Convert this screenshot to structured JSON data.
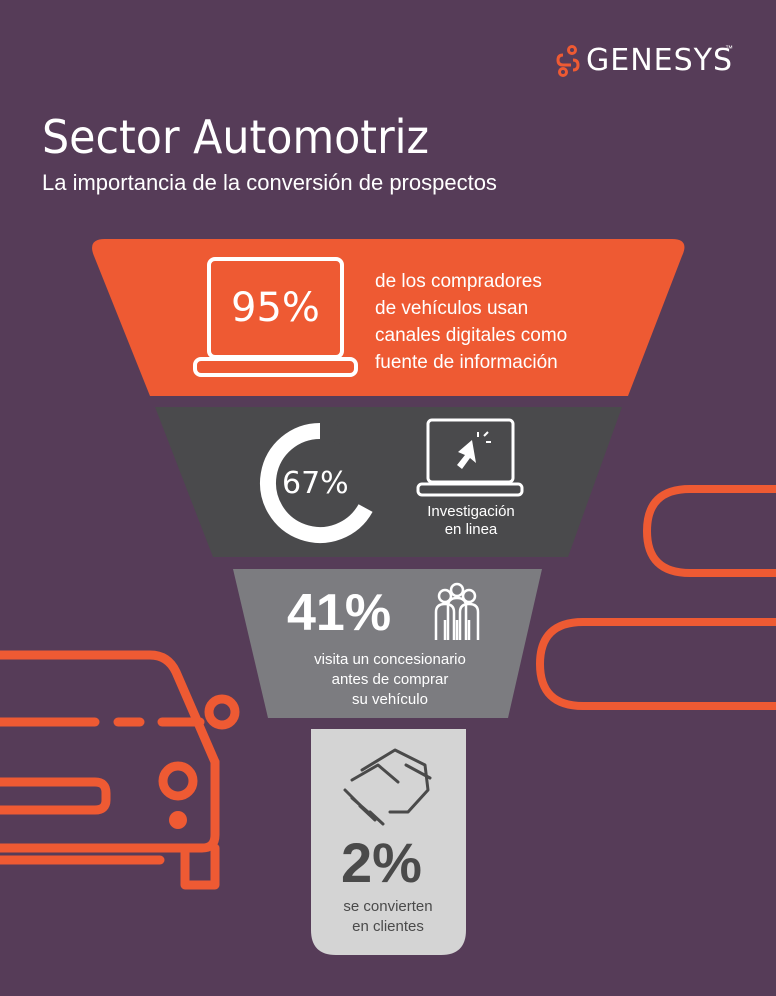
{
  "brand": {
    "name": "GENESYS",
    "trademark": "™",
    "logo_icon": "genesys-logo-icon"
  },
  "header": {
    "title": "Sector Automotriz",
    "subtitle": "La importancia de la conversión de prospectos"
  },
  "colors": {
    "background": "#563c58",
    "orange": "#ee5a33",
    "dark_gray": "#4a4a4c",
    "mid_gray": "#7c7c80",
    "light_gray": "#d4d4d4"
  },
  "funnel": {
    "tier1": {
      "stat": "95%",
      "description_lines": [
        "de los compradores",
        "de vehículos usan",
        "canales digitales como",
        "fuente de información"
      ],
      "icon": "laptop-icon"
    },
    "tier2": {
      "stat": "67%",
      "ring_fraction": 0.67,
      "label_lines": [
        "Investigación",
        "en linea"
      ],
      "icon": "laptop-cursor-icon"
    },
    "tier3": {
      "stat": "41%",
      "description_lines": [
        "visita un concesionario",
        "antes de comprar",
        "su vehículo"
      ],
      "icon": "people-icon"
    },
    "tier4": {
      "stat": "2%",
      "description_lines": [
        "se convierten",
        "en clientes"
      ],
      "icon": "handshake-icon"
    }
  },
  "decorations": {
    "car": "car-outline-icon",
    "pills": "pill-outline-shapes"
  }
}
